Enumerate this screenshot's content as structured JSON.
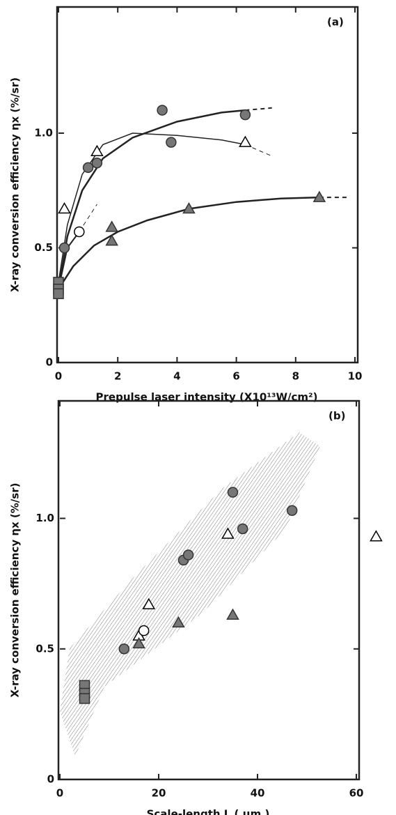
{
  "chart_data": [
    {
      "type": "scatter",
      "annotation": "(a)",
      "xlabel": "Prepulse laser intensity (X10¹³W/cm²)",
      "ylabel": "X-ray conversion efficiency ηx (%/sr)",
      "xlim": [
        0,
        10
      ],
      "xticks": [
        0,
        2,
        4,
        6,
        8,
        10
      ],
      "ylim": [
        0,
        1.55
      ],
      "yticks": [
        0,
        0.5,
        {
          "value": 1,
          "label": "1.0"
        }
      ],
      "series": [
        {
          "marker": "circle",
          "filled": true,
          "color": "#777",
          "x": [
            0.2,
            1.0,
            1.3,
            3.5,
            3.8,
            6.3
          ],
          "y": [
            0.5,
            0.85,
            0.87,
            1.1,
            0.96,
            1.08
          ]
        },
        {
          "marker": "triangle",
          "filled": false,
          "color": "#000",
          "x": [
            0.2,
            1.3,
            6.3
          ],
          "y": [
            0.67,
            0.92,
            0.96
          ]
        },
        {
          "marker": "circle",
          "filled": false,
          "color": "#000",
          "x": [
            0.7
          ],
          "y": [
            0.57
          ]
        },
        {
          "marker": "triangle",
          "filled": true,
          "color": "#777",
          "x": [
            1.8,
            1.8,
            4.4,
            8.8
          ],
          "y": [
            0.59,
            0.53,
            0.67,
            0.72
          ]
        },
        {
          "marker": "square",
          "filled": true,
          "color": "#777",
          "x": [
            0,
            0,
            0
          ],
          "y": [
            0.35,
            0.32,
            0.3
          ]
        }
      ],
      "curves": [
        {
          "dashed": false,
          "width": 2.5,
          "x": [
            0,
            0.3,
            0.8,
            1.5,
            2.5,
            4,
            5.5,
            6.3
          ],
          "y": [
            0.32,
            0.55,
            0.75,
            0.89,
            0.98,
            1.05,
            1.09,
            1.1
          ]
        },
        {
          "dashed": true,
          "width": 2,
          "x": [
            6.3,
            7.2
          ],
          "y": [
            1.1,
            1.11
          ]
        },
        {
          "dashed": false,
          "width": 1.5,
          "x": [
            0,
            0.3,
            0.8,
            1.5,
            2.5,
            4,
            5.5,
            6.3
          ],
          "y": [
            0.35,
            0.6,
            0.82,
            0.95,
            1.0,
            0.99,
            0.97,
            0.95
          ]
        },
        {
          "dashed": true,
          "width": 1,
          "x": [
            6.3,
            7.2
          ],
          "y": [
            0.95,
            0.9
          ]
        },
        {
          "dashed": false,
          "width": 2,
          "x": [
            0,
            0.3,
            0.7
          ],
          "y": [
            0.32,
            0.5,
            0.57
          ]
        },
        {
          "dashed": true,
          "width": 1,
          "x": [
            0.7,
            1.3
          ],
          "y": [
            0.57,
            0.69
          ]
        },
        {
          "dashed": false,
          "width": 2.5,
          "x": [
            0,
            0.5,
            1.2,
            2,
            3,
            4.4,
            6,
            7.5,
            8.8
          ],
          "y": [
            0.32,
            0.42,
            0.51,
            0.57,
            0.62,
            0.67,
            0.7,
            0.715,
            0.72
          ]
        },
        {
          "dashed": true,
          "width": 2,
          "x": [
            8.8,
            9.8
          ],
          "y": [
            0.72,
            0.72
          ]
        }
      ]
    },
    {
      "type": "scatter",
      "annotation": "(b)",
      "xlabel": "Scale-length  L  ( μm )",
      "ylabel": "X-ray conversion efficiency ηx (%/sr)",
      "xlim": [
        0,
        60
      ],
      "xticks": [
        0,
        20,
        40,
        60
      ],
      "ylim": [
        0,
        1.45
      ],
      "yticks": [
        0,
        0.5,
        {
          "value": 1,
          "label": "1.0"
        }
      ],
      "series": [
        {
          "marker": "circle",
          "filled": true,
          "color": "#777",
          "x": [
            13,
            25,
            26,
            35,
            47,
            37
          ],
          "y": [
            0.5,
            0.84,
            0.86,
            1.1,
            1.03,
            0.96
          ]
        },
        {
          "marker": "triangle",
          "filled": false,
          "color": "#000",
          "x": [
            18,
            34,
            64,
            16
          ],
          "y": [
            0.67,
            0.94,
            0.93,
            0.55
          ]
        },
        {
          "marker": "circle",
          "filled": false,
          "color": "#000",
          "x": [
            17
          ],
          "y": [
            0.57
          ]
        },
        {
          "marker": "triangle",
          "filled": true,
          "color": "#777",
          "x": [
            16,
            24,
            35
          ],
          "y": [
            0.52,
            0.6,
            0.63
          ]
        },
        {
          "marker": "square",
          "filled": true,
          "color": "#777",
          "x": [
            5,
            5,
            5
          ],
          "y": [
            0.36,
            0.33,
            0.31
          ]
        }
      ]
    }
  ]
}
